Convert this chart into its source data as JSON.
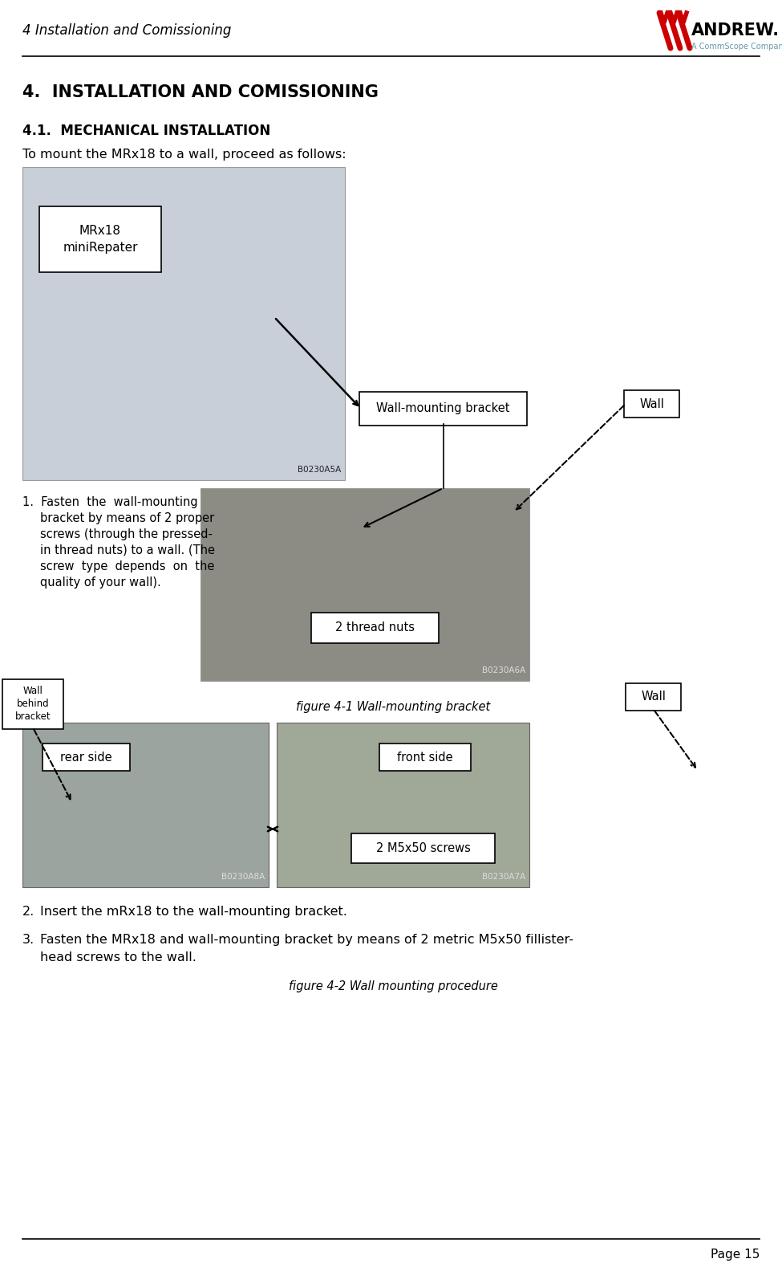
{
  "page_title": "4 Installation and Comissioning",
  "company_name": "ANDREW.",
  "company_subtitle": "A CommScope Company",
  "section_title": "4.  INSTALLATION AND COMISSIONING",
  "subsection_title": "4.1.  MECHANICAL INSTALLATION",
  "intro_text": "To mount the MRx18 to a wall, proceed as follows:",
  "label_mrx18": "MRx18\nminiRepater",
  "label_wall_mounting": "Wall-mounting bracket",
  "label_wall1": "Wall",
  "label_2thread": "2 thread nuts",
  "label_wall_behind": "Wall\nbehind\nbracket",
  "label_wall2": "Wall",
  "figure1_caption": "figure 4-1 Wall-mounting bracket",
  "label_rear": "rear side",
  "label_front": "front side",
  "label_2m5": "2 M5x50 screws",
  "figure2_caption": "figure 4-2 Wall mounting procedure",
  "step1_num": "1.",
  "step1_text": "Fasten  the  wall-mounting\nbracket by means of 2 proper\nscrews (through the pressed-\nin thread nuts) to a wall. (The\nscrew  type  depends  on  the\nquality of your wall).",
  "step2_text": "2.\tInsert the mRx18 to the wall-mounting bracket.",
  "step3_text": "3.\tFasten the MRx18 and wall-mounting bracket by means of 2 metric M5x50 fillister-\n\thead screws to the wall.",
  "page_number": "Page 15",
  "bg_color": "#ffffff",
  "text_color": "#000000",
  "img1_color": "#c8cfd8",
  "img2_color": "#8c8c84",
  "img3_color": "#9ca4a0",
  "img4_color": "#a0a898"
}
